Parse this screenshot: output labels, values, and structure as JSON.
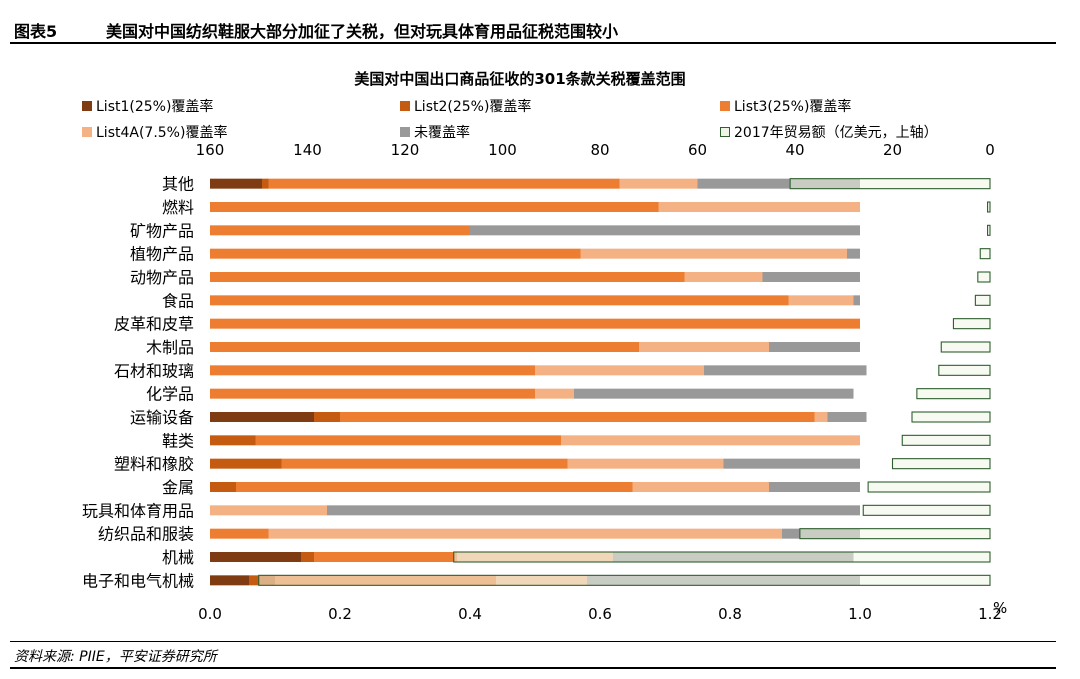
{
  "header": {
    "label": "图表5",
    "text": "美国对中国纺织鞋服大部分加征了关税，但对玩具体育用品征税范围较小"
  },
  "source": "资料来源: PIIE，平安证券研究所",
  "colors": {
    "list1": "#7f3b12",
    "list2": "#c55a11",
    "list3": "#ed7d31",
    "list4a": "#f4b183",
    "uncovered": "#999999",
    "trade_fill": "#eef5e6",
    "trade_stroke": "#2f5f2f"
  },
  "chart_data": {
    "type": "bar",
    "orientation": "horizontal",
    "stacked": true,
    "title": "美国对中国出口商品征收的301条款关税覆盖范围",
    "categories": [
      "其他",
      "燃料",
      "矿物产品",
      "植物产品",
      "动物产品",
      "食品",
      "皮革和皮草",
      "木制品",
      "石材和玻璃",
      "化学品",
      "运输设备",
      "鞋类",
      "塑料和橡胶",
      "金属",
      "玩具和体育用品",
      "纺织品和服装",
      "机械",
      "电子和电气机械"
    ],
    "series": [
      {
        "name": "List1(25%)覆盖率",
        "values": [
          0.08,
          0,
          0,
          0,
          0,
          0,
          0,
          0,
          0,
          0,
          0.16,
          0,
          0,
          0,
          0,
          0,
          0.14,
          0.06
        ]
      },
      {
        "name": "List2(25%)覆盖率",
        "values": [
          0.01,
          0,
          0,
          0,
          0,
          0,
          0,
          0,
          0,
          0,
          0.04,
          0.07,
          0.11,
          0.04,
          0,
          0,
          0.02,
          0.04
        ]
      },
      {
        "name": "List3(25%)覆盖率",
        "values": [
          0.54,
          0.69,
          0.4,
          0.57,
          0.73,
          0.89,
          1.0,
          0.66,
          0.5,
          0.5,
          0.73,
          0.47,
          0.44,
          0.61,
          0,
          0.09,
          0.22,
          0.34
        ]
      },
      {
        "name": "List4A(7.5%)覆盖率",
        "values": [
          0.12,
          0.31,
          0,
          0.41,
          0.12,
          0.1,
          0,
          0.2,
          0.26,
          0.06,
          0.02,
          0.46,
          0.24,
          0.21,
          0.18,
          0.79,
          0.24,
          0.14
        ]
      },
      {
        "name": "未覆盖率",
        "values": [
          0.25,
          0,
          0.6,
          0.02,
          0.15,
          0.01,
          0,
          0.14,
          0.25,
          0.43,
          0.06,
          0,
          0.21,
          0.14,
          0.82,
          0.12,
          0.37,
          0.42
        ]
      }
    ],
    "trade_series": {
      "name": "2017年贸易额（亿美元，上轴）",
      "values": [
        41,
        0.5,
        0.5,
        2,
        2.5,
        3,
        7.5,
        10,
        10.5,
        15,
        16,
        18,
        20,
        25,
        26,
        39,
        110,
        150
      ]
    },
    "xlim": [
      0,
      1.2
    ],
    "xticks": [
      "0.0",
      "0.2",
      "0.4",
      "0.6",
      "0.8",
      "1.0",
      "1.2"
    ],
    "x_unit": "%",
    "x2lim": [
      160,
      0
    ],
    "x2ticks": [
      "160",
      "140",
      "120",
      "100",
      "80",
      "60",
      "40",
      "20",
      "0"
    ],
    "legend": [
      "List1(25%)覆盖率",
      "List2(25%)覆盖率",
      "List3(25%)覆盖率",
      "List4A(7.5%)覆盖率",
      "未覆盖率",
      "2017年贸易额（亿美元，上轴）"
    ]
  }
}
